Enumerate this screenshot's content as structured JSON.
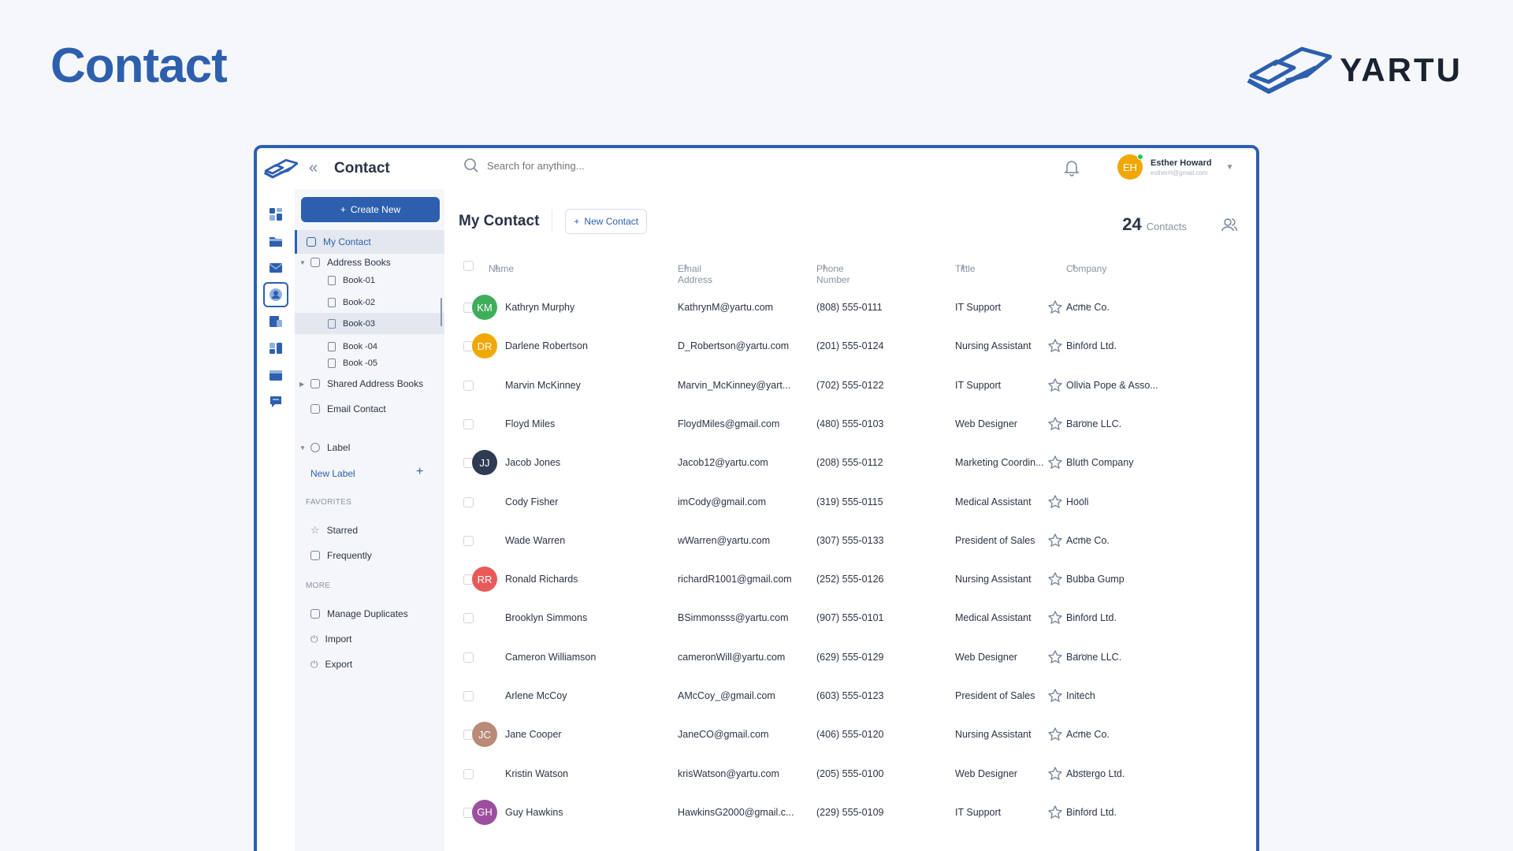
{
  "page": {
    "title": "Contact",
    "brand": "YARTU"
  },
  "app": {
    "title": "Contact",
    "search_placeholder": "Search for anything...",
    "user": {
      "initials": "EH",
      "name": "Esther Howard",
      "email": "estherH@gmail.com",
      "avatar_color": "#f0a800"
    }
  },
  "rail": [
    "dashboard-icon",
    "folder-icon",
    "mail-icon",
    "contact-icon",
    "notes-icon",
    "apps-icon",
    "calendar-icon",
    "chat-icon"
  ],
  "sidebar": {
    "create_new": "Create New",
    "my_contact": "My Contact",
    "address_books": "Address Books",
    "books": [
      "Book-01",
      "Book-02",
      "Book-03",
      "Book -04",
      "Book -05"
    ],
    "shared_address_books": "Shared Address Books",
    "email_contact": "Email Contact",
    "label": "Label",
    "new_label": "New Label",
    "favorites_heading": "FAVORITES",
    "starred": "Starred",
    "frequently": "Frequently",
    "more_heading": "MORE",
    "manage_duplicates": "Manage Duplicates",
    "import": "Import",
    "export": "Export"
  },
  "main": {
    "title": "My Contact",
    "new_contact": "New Contact",
    "count": "24",
    "count_label": "Contacts",
    "columns": {
      "name": "Name",
      "email": "Email Address",
      "phone": "Phone Number",
      "title": "Tittle",
      "company": "Company"
    }
  },
  "contacts": [
    {
      "initials": "KM",
      "avatar_color": "#3fae5a",
      "name": "Kathryn Murphy",
      "email": "KathrynM@yartu.com",
      "phone": "(808) 555-0111",
      "title": "IT Support",
      "company": "Acme Co."
    },
    {
      "initials": "DR",
      "avatar_color": "#f0a800",
      "name": "Darlene Robertson",
      "email": "D_Robertson@yartu.com",
      "phone": "(201) 555-0124",
      "title": "Nursing Assistant",
      "company": "Binford Ltd."
    },
    {
      "initials": "",
      "avatar_color": "",
      "name": "Marvin McKinney",
      "email": "Marvin_McKinney@yart...",
      "phone": "(702) 555-0122",
      "title": "IT Support",
      "company": "Olivia Pope & Asso..."
    },
    {
      "initials": "",
      "avatar_color": "",
      "name": "Floyd Miles",
      "email": "FloydMiles@gmail.com",
      "phone": "(480) 555-0103",
      "title": "Web Designer",
      "company": "Barone LLC."
    },
    {
      "initials": "JJ",
      "avatar_color": "#2f3b52",
      "name": "Jacob Jones",
      "email": "Jacob12@yartu.com",
      "phone": "(208) 555-0112",
      "title": "Marketing Coordin...",
      "company": "Bluth Company"
    },
    {
      "initials": "",
      "avatar_color": "",
      "name": "Cody Fisher",
      "email": "imCody@gmail.com",
      "phone": "(319) 555-0115",
      "title": "Medical Assistant",
      "company": "Hooli"
    },
    {
      "initials": "",
      "avatar_color": "",
      "name": "Wade Warren",
      "email": "wWarren@yartu.com",
      "phone": "(307) 555-0133",
      "title": "President of Sales",
      "company": "Acme Co."
    },
    {
      "initials": "RR",
      "avatar_color": "#e85a5a",
      "name": "Ronald Richards",
      "email": "richardR1001@gmail.com",
      "phone": "(252) 555-0126",
      "title": "Nursing Assistant",
      "company": "Bubba Gump"
    },
    {
      "initials": "",
      "avatar_color": "",
      "name": "Brooklyn Simmons",
      "email": "BSimmonsss@yartu.com",
      "phone": "(907) 555-0101",
      "title": "Medical Assistant",
      "company": "Binford Ltd."
    },
    {
      "initials": "",
      "avatar_color": "",
      "name": "Cameron Williamson",
      "email": "cameronWill@yartu.com",
      "phone": "(629) 555-0129",
      "title": "Web Designer",
      "company": "Barone LLC."
    },
    {
      "initials": "",
      "avatar_color": "",
      "name": "Arlene McCoy",
      "email": "AMcCoy_@gmail.com",
      "phone": "(603) 555-0123",
      "title": "President of Sales",
      "company": "Initech"
    },
    {
      "initials": "JC",
      "avatar_color": "#b98a78",
      "name": "Jane Cooper",
      "email": "JaneCO@gmail.com",
      "phone": "(406) 555-0120",
      "title": "Nursing Assistant",
      "company": "Acme Co."
    },
    {
      "initials": "",
      "avatar_color": "",
      "name": "Kristin Watson",
      "email": "krisWatson@yartu.com",
      "phone": "(205) 555-0100",
      "title": "Web Designer",
      "company": "Abstergo Ltd."
    },
    {
      "initials": "GH",
      "avatar_color": "#9b4f9e",
      "name": "Guy Hawkins",
      "email": "HawkinsG2000@gmail.c...",
      "phone": "(229) 555-0109",
      "title": "IT Support",
      "company": "Binford Ltd."
    }
  ],
  "colors": {
    "accent": "#2d5fae",
    "background": "#f5f7fa",
    "sidebar": "#f4f6f9"
  }
}
